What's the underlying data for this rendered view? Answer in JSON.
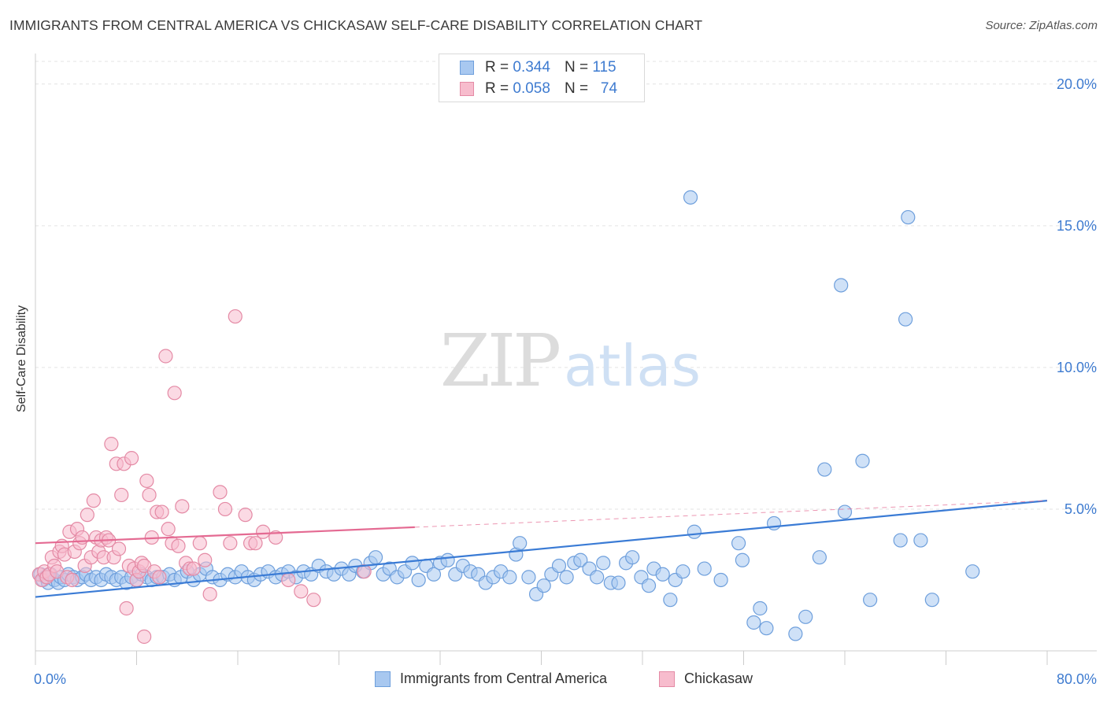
{
  "header": {
    "title": "IMMIGRANTS FROM CENTRAL AMERICA VS CHICKASAW SELF-CARE DISABILITY CORRELATION CHART",
    "source": "Source: ZipAtlas.com"
  },
  "watermark": {
    "zip": "ZIP",
    "atlas": "atlas"
  },
  "legend": {
    "rows": [
      {
        "r_label": "R =",
        "r_value": "0.344",
        "n_label": "N =",
        "n_value": "115",
        "color": "#a8c8f0",
        "stroke": "#6e9fdc"
      },
      {
        "r_label": "R =",
        "r_value": "0.058",
        "n_label": "N =",
        "n_value": "74",
        "color": "#f7bccd",
        "stroke": "#e48aa5"
      }
    ]
  },
  "chart_data": {
    "type": "scatter",
    "title": "IMMIGRANTS FROM CENTRAL AMERICA VS CHICKASAW SELF-CARE DISABILITY CORRELATION CHART",
    "xlabel": "",
    "ylabel": "Self-Care Disability",
    "xlim": [
      0,
      80
    ],
    "ylim": [
      0,
      20.8
    ],
    "x_tick_labels": [
      "0.0%",
      "80.0%"
    ],
    "y_ticks": [
      5,
      10,
      15,
      20
    ],
    "y_tick_labels": [
      "5.0%",
      "10.0%",
      "15.0%",
      "20.0%"
    ],
    "grid": true,
    "legend_position": "top-center",
    "series": [
      {
        "name": "Immigrants from Central America",
        "color": "#a8c8f0",
        "stroke": "#6e9fdc",
        "trend_color": "#3a7bd5",
        "trend": {
          "x0": 0,
          "y0": 1.9,
          "x1": 80,
          "y1": 5.3,
          "solid_to": 80
        },
        "points": [
          [
            0.4,
            2.7
          ],
          [
            0.6,
            2.5
          ],
          [
            0.8,
            2.6
          ],
          [
            1.0,
            2.4
          ],
          [
            1.2,
            2.7
          ],
          [
            1.5,
            2.5
          ],
          [
            1.8,
            2.4
          ],
          [
            2.0,
            2.6
          ],
          [
            2.3,
            2.5
          ],
          [
            2.6,
            2.7
          ],
          [
            3.0,
            2.6
          ],
          [
            3.3,
            2.5
          ],
          [
            3.7,
            2.6
          ],
          [
            4.0,
            2.7
          ],
          [
            4.4,
            2.5
          ],
          [
            4.8,
            2.6
          ],
          [
            5.2,
            2.5
          ],
          [
            5.6,
            2.7
          ],
          [
            6.0,
            2.6
          ],
          [
            6.4,
            2.5
          ],
          [
            6.8,
            2.6
          ],
          [
            7.2,
            2.4
          ],
          [
            7.6,
            2.6
          ],
          [
            8.0,
            2.5
          ],
          [
            8.4,
            2.7
          ],
          [
            8.8,
            2.6
          ],
          [
            9.2,
            2.5
          ],
          [
            9.6,
            2.6
          ],
          [
            10.1,
            2.6
          ],
          [
            10.6,
            2.7
          ],
          [
            11.0,
            2.5
          ],
          [
            11.5,
            2.6
          ],
          [
            12.0,
            2.8
          ],
          [
            12.5,
            2.5
          ],
          [
            13.0,
            2.7
          ],
          [
            13.5,
            2.9
          ],
          [
            14.0,
            2.6
          ],
          [
            14.6,
            2.5
          ],
          [
            15.2,
            2.7
          ],
          [
            15.8,
            2.6
          ],
          [
            16.3,
            2.8
          ],
          [
            16.8,
            2.6
          ],
          [
            17.3,
            2.5
          ],
          [
            17.8,
            2.7
          ],
          [
            18.4,
            2.8
          ],
          [
            19.0,
            2.6
          ],
          [
            19.5,
            2.7
          ],
          [
            20.0,
            2.8
          ],
          [
            20.6,
            2.6
          ],
          [
            21.2,
            2.8
          ],
          [
            21.8,
            2.7
          ],
          [
            22.4,
            3.0
          ],
          [
            23.0,
            2.8
          ],
          [
            23.6,
            2.7
          ],
          [
            24.2,
            2.9
          ],
          [
            24.8,
            2.7
          ],
          [
            25.3,
            3.0
          ],
          [
            25.9,
            2.8
          ],
          [
            26.5,
            3.1
          ],
          [
            26.9,
            3.3
          ],
          [
            27.5,
            2.7
          ],
          [
            28.0,
            2.9
          ],
          [
            28.6,
            2.6
          ],
          [
            29.2,
            2.8
          ],
          [
            29.8,
            3.1
          ],
          [
            30.3,
            2.5
          ],
          [
            30.9,
            3.0
          ],
          [
            31.5,
            2.7
          ],
          [
            32.0,
            3.1
          ],
          [
            32.6,
            3.2
          ],
          [
            33.2,
            2.7
          ],
          [
            33.8,
            3.0
          ],
          [
            34.4,
            2.8
          ],
          [
            35.0,
            2.7
          ],
          [
            35.6,
            2.4
          ],
          [
            36.2,
            2.6
          ],
          [
            36.8,
            2.8
          ],
          [
            37.5,
            2.6
          ],
          [
            38.0,
            3.4
          ],
          [
            38.3,
            3.8
          ],
          [
            39.0,
            2.6
          ],
          [
            39.6,
            2.0
          ],
          [
            40.2,
            2.3
          ],
          [
            40.8,
            2.7
          ],
          [
            41.4,
            3.0
          ],
          [
            42.0,
            2.6
          ],
          [
            42.6,
            3.1
          ],
          [
            43.1,
            3.2
          ],
          [
            43.8,
            2.9
          ],
          [
            44.4,
            2.6
          ],
          [
            44.9,
            3.1
          ],
          [
            45.5,
            2.4
          ],
          [
            46.1,
            2.4
          ],
          [
            46.7,
            3.1
          ],
          [
            47.2,
            3.3
          ],
          [
            47.9,
            2.6
          ],
          [
            48.5,
            2.3
          ],
          [
            48.9,
            2.9
          ],
          [
            49.6,
            2.7
          ],
          [
            50.2,
            1.8
          ],
          [
            50.6,
            2.5
          ],
          [
            51.2,
            2.8
          ],
          [
            52.1,
            4.2
          ],
          [
            52.9,
            2.9
          ],
          [
            54.2,
            2.5
          ],
          [
            55.6,
            3.8
          ],
          [
            55.9,
            3.2
          ],
          [
            56.8,
            1.0
          ],
          [
            57.3,
            1.5
          ],
          [
            57.8,
            0.8
          ],
          [
            58.4,
            4.5
          ],
          [
            60.1,
            0.6
          ],
          [
            60.9,
            1.2
          ],
          [
            62.0,
            3.3
          ],
          [
            62.4,
            6.4
          ],
          [
            64.0,
            4.9
          ],
          [
            63.7,
            12.9
          ],
          [
            65.4,
            6.7
          ],
          [
            66.0,
            1.8
          ],
          [
            68.4,
            3.9
          ],
          [
            69.0,
            15.3
          ],
          [
            68.8,
            11.7
          ],
          [
            70.9,
            1.8
          ],
          [
            70.0,
            3.9
          ],
          [
            74.1,
            2.8
          ],
          [
            51.8,
            16.0
          ]
        ]
      },
      {
        "name": "Chickasaw",
        "color": "#f7bccd",
        "stroke": "#e48aa5",
        "trend_color": "#e46a92",
        "trend": {
          "x0": 0,
          "y0": 3.8,
          "x1": 80,
          "y1": 5.3,
          "solid_to": 30
        },
        "points": [
          [
            0.3,
            2.7
          ],
          [
            0.5,
            2.5
          ],
          [
            0.7,
            2.8
          ],
          [
            0.9,
            2.6
          ],
          [
            1.1,
            2.7
          ],
          [
            1.3,
            3.3
          ],
          [
            1.5,
            3.0
          ],
          [
            1.7,
            2.8
          ],
          [
            1.9,
            3.5
          ],
          [
            2.1,
            3.7
          ],
          [
            2.3,
            3.4
          ],
          [
            2.5,
            2.6
          ],
          [
            2.7,
            4.2
          ],
          [
            2.9,
            2.5
          ],
          [
            3.1,
            3.5
          ],
          [
            3.3,
            4.3
          ],
          [
            3.5,
            3.8
          ],
          [
            3.7,
            4.0
          ],
          [
            3.9,
            3.0
          ],
          [
            4.1,
            4.8
          ],
          [
            4.4,
            3.3
          ],
          [
            4.6,
            5.3
          ],
          [
            4.8,
            4.0
          ],
          [
            5.0,
            3.5
          ],
          [
            5.2,
            3.9
          ],
          [
            5.4,
            3.3
          ],
          [
            5.6,
            4.0
          ],
          [
            5.8,
            3.9
          ],
          [
            6.0,
            7.3
          ],
          [
            6.2,
            3.3
          ],
          [
            6.4,
            6.6
          ],
          [
            6.6,
            3.6
          ],
          [
            6.8,
            5.5
          ],
          [
            7.0,
            6.6
          ],
          [
            7.2,
            1.5
          ],
          [
            7.4,
            3.0
          ],
          [
            7.6,
            6.8
          ],
          [
            7.8,
            2.9
          ],
          [
            8.0,
            2.5
          ],
          [
            8.2,
            2.8
          ],
          [
            8.4,
            3.1
          ],
          [
            8.6,
            3.0
          ],
          [
            8.8,
            6.0
          ],
          [
            9.0,
            5.5
          ],
          [
            9.2,
            4.0
          ],
          [
            9.4,
            2.8
          ],
          [
            9.6,
            4.9
          ],
          [
            9.8,
            2.6
          ],
          [
            10.0,
            4.9
          ],
          [
            10.3,
            10.4
          ],
          [
            10.5,
            4.3
          ],
          [
            10.8,
            3.8
          ],
          [
            11.0,
            9.1
          ],
          [
            11.3,
            3.7
          ],
          [
            11.6,
            5.1
          ],
          [
            11.9,
            3.1
          ],
          [
            12.2,
            2.9
          ],
          [
            12.5,
            2.9
          ],
          [
            13.0,
            3.8
          ],
          [
            13.4,
            3.2
          ],
          [
            13.8,
            2.0
          ],
          [
            14.6,
            5.6
          ],
          [
            15.0,
            5.0
          ],
          [
            15.4,
            3.8
          ],
          [
            15.8,
            11.8
          ],
          [
            16.6,
            4.8
          ],
          [
            17.0,
            3.8
          ],
          [
            17.4,
            3.8
          ],
          [
            18.0,
            4.2
          ],
          [
            19.0,
            4.0
          ],
          [
            20.0,
            2.5
          ],
          [
            21.0,
            2.1
          ],
          [
            22.0,
            1.8
          ],
          [
            26.0,
            2.8
          ],
          [
            8.6,
            0.5
          ]
        ]
      }
    ]
  },
  "bottom_legend": [
    {
      "label": "Immigrants from Central America",
      "color": "#a8c8f0",
      "stroke": "#6e9fdc"
    },
    {
      "label": "Chickasaw",
      "color": "#f7bccd",
      "stroke": "#e48aa5"
    }
  ]
}
